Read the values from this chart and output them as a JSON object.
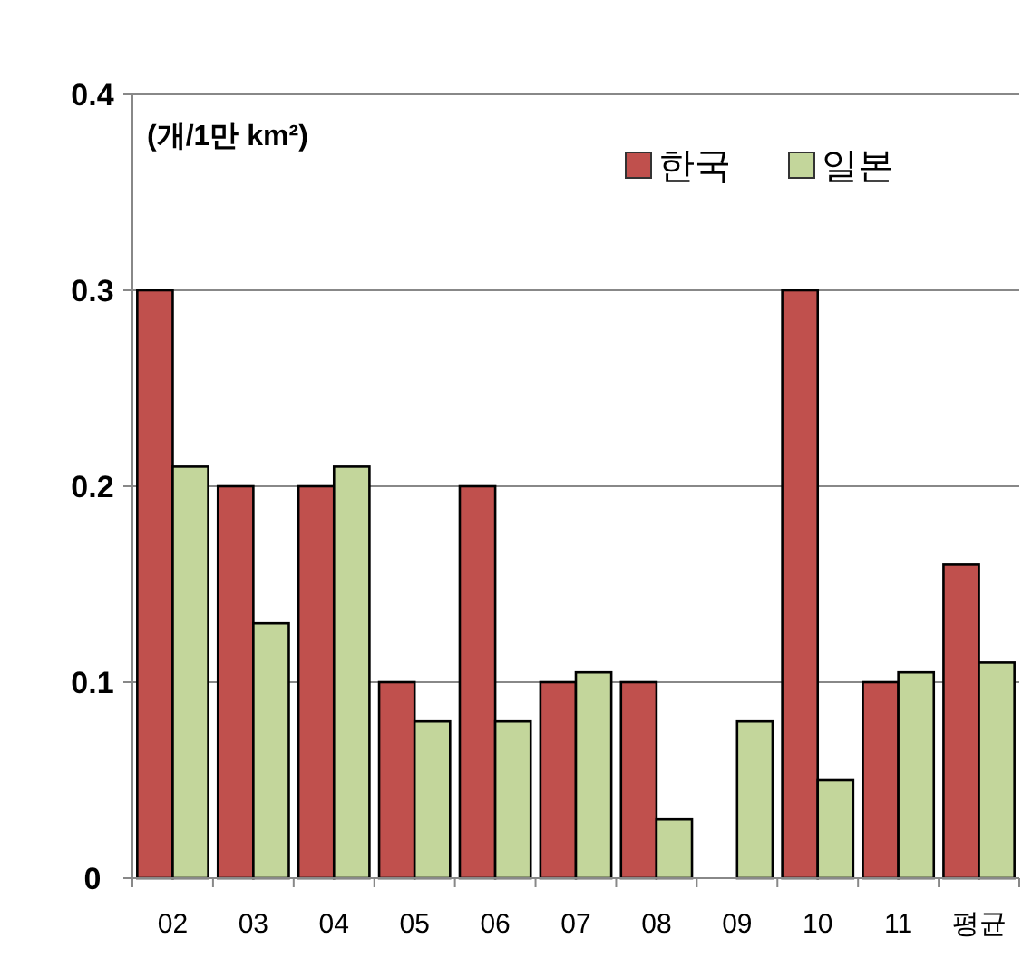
{
  "chart_data": {
    "type": "bar",
    "categories": [
      "02",
      "03",
      "04",
      "05",
      "06",
      "07",
      "08",
      "09",
      "10",
      "11",
      "평균"
    ],
    "series": [
      {
        "name": "한국",
        "color": "#c0504d",
        "values": [
          0.3,
          0.2,
          0.2,
          0.1,
          0.2,
          0.1,
          0.1,
          0,
          0.3,
          0.1,
          0.16
        ]
      },
      {
        "name": "일본",
        "color": "#c3d69b",
        "values": [
          0.21,
          0.13,
          0.21,
          0.08,
          0.08,
          0.105,
          0.03,
          0.08,
          0.05,
          0.105,
          0.11
        ]
      }
    ],
    "ylim": [
      0,
      0.4
    ],
    "yticks": [
      0,
      0.1,
      0.2,
      0.3,
      0.4
    ],
    "grid": "y",
    "legend": "top right",
    "annotations": [
      "(개/1만 km²)"
    ]
  }
}
